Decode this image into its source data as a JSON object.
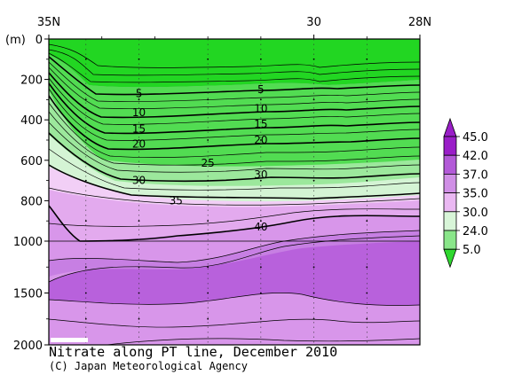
{
  "chart_data": {
    "type": "heatmap",
    "title": "Nitrate along PT line, December 2010",
    "credit": "(C) Japan Meteorological Agency",
    "x_axis": {
      "ticks": [
        "35N",
        "30",
        "28N"
      ],
      "tick_values": [
        35,
        30,
        28
      ],
      "range": [
        35,
        28
      ]
    },
    "y_axis": {
      "unit_label": "(m)",
      "ticks": [
        "0",
        "200",
        "400",
        "600",
        "800",
        "1000",
        "1500",
        "2000"
      ],
      "tick_values": [
        0,
        200,
        400,
        600,
        800,
        1000,
        1500,
        2000
      ],
      "range": [
        0,
        2000
      ],
      "scale_break_at": 1000
    },
    "colorbar": {
      "levels": [
        "45.0",
        "42.0",
        "37.0",
        "35.0",
        "30.0",
        "24.0",
        "5.0"
      ],
      "colors": [
        "#9a1ec8",
        "#b35ad8",
        "#d08fe6",
        "#eab8f2",
        "#d8f5d8",
        "#8ae68a",
        "#2fd82f"
      ]
    },
    "contour_labels": [
      {
        "text": "5",
        "lat": 33.3,
        "depth": 270
      },
      {
        "text": "5",
        "lat": 31.0,
        "depth": 250
      },
      {
        "text": "10",
        "lat": 33.3,
        "depth": 365
      },
      {
        "text": "10",
        "lat": 31.0,
        "depth": 345
      },
      {
        "text": "15",
        "lat": 33.3,
        "depth": 445
      },
      {
        "text": "15",
        "lat": 31.0,
        "depth": 420
      },
      {
        "text": "20",
        "lat": 33.3,
        "depth": 520
      },
      {
        "text": "20",
        "lat": 31.0,
        "depth": 500
      },
      {
        "text": "25",
        "lat": 32.0,
        "depth": 615
      },
      {
        "text": "30",
        "lat": 33.3,
        "depth": 700
      },
      {
        "text": "30",
        "lat": 31.0,
        "depth": 670
      },
      {
        "text": "35",
        "lat": 32.6,
        "depth": 800
      },
      {
        "text": "40",
        "lat": 31.0,
        "depth": 930
      }
    ]
  }
}
